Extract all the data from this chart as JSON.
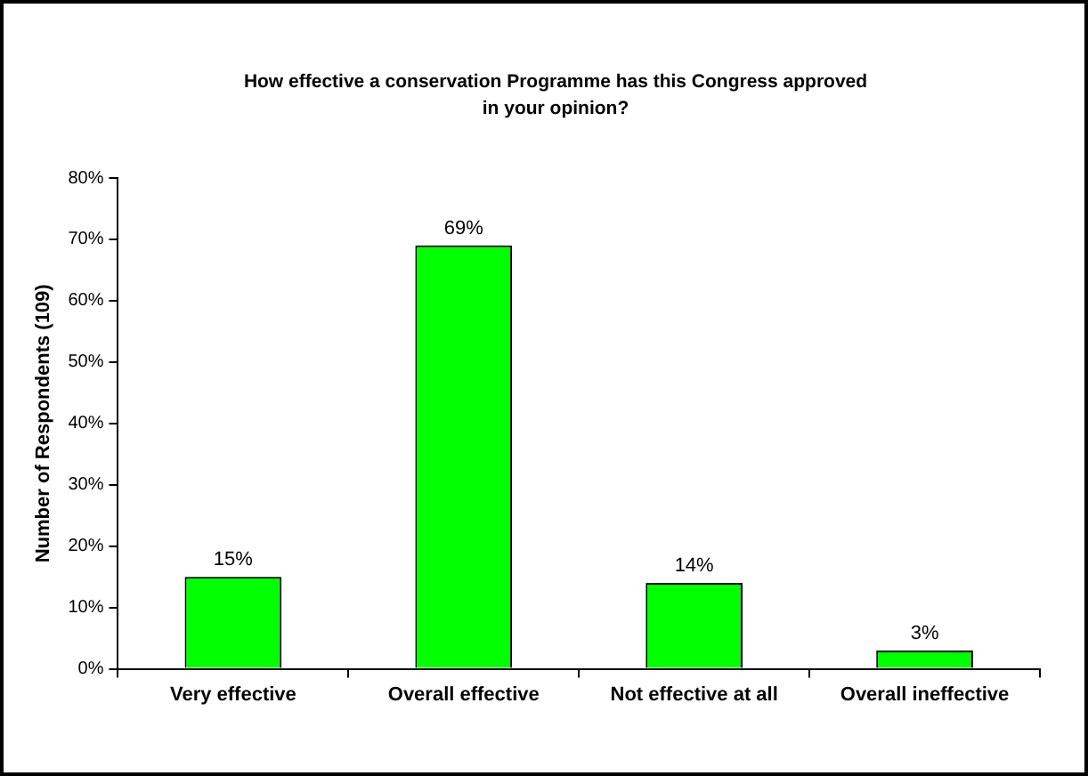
{
  "chart_data": {
    "type": "bar",
    "title": "How effective a conservation Programme has this Congress approved in your opinion?",
    "ylabel": "Number of Respondents (109)",
    "categories": [
      "Very effective",
      "Overall effective",
      "Not effective at all",
      "Overall ineffective"
    ],
    "values": [
      15,
      69,
      14,
      3
    ],
    "color": "#00ff00",
    "value_labels": [
      "15%",
      "69%",
      "14%",
      "3%"
    ],
    "ylim": [
      0,
      80
    ],
    "yticks": [
      {
        "value": 0,
        "label": "0%"
      },
      {
        "value": 10,
        "label": "10%"
      },
      {
        "value": 20,
        "label": "20%"
      },
      {
        "value": 30,
        "label": "30%"
      },
      {
        "value": 40,
        "label": "40%"
      },
      {
        "value": 50,
        "label": "50%"
      },
      {
        "value": 60,
        "label": "60%"
      },
      {
        "value": 70,
        "label": "70%"
      },
      {
        "value": 80,
        "label": "80%"
      }
    ],
    "grid": false,
    "legend": false
  }
}
